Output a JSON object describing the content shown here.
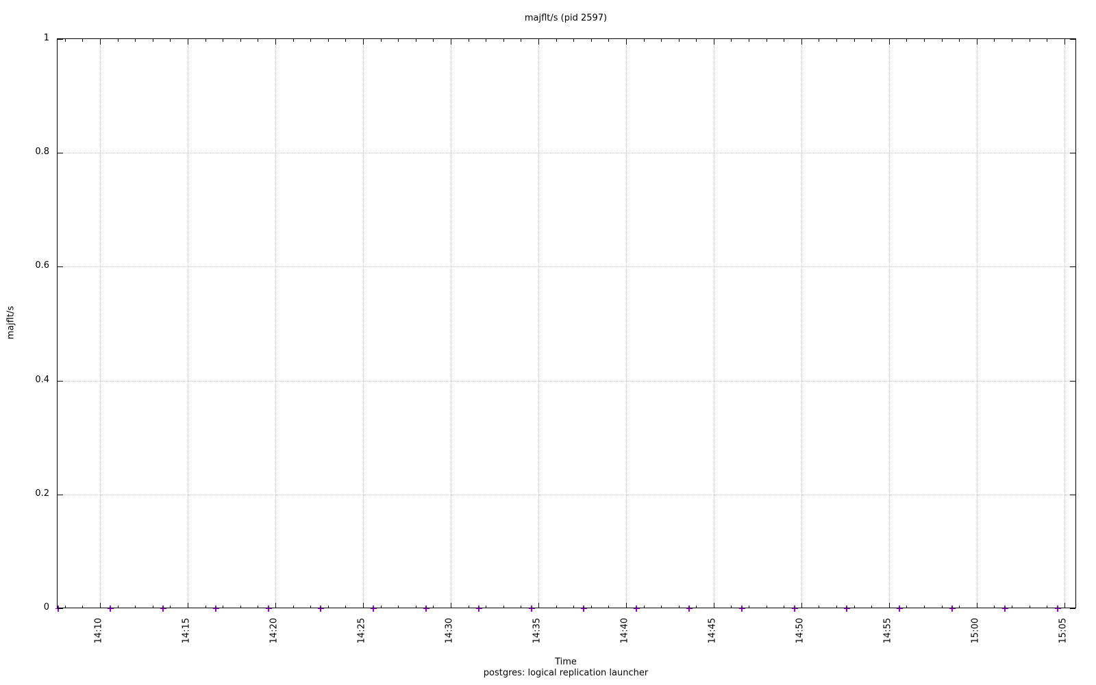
{
  "chart_data": {
    "type": "scatter",
    "title": "majflt/s (pid 2597)",
    "xlabel": "Time",
    "ylabel": "majflt/s",
    "footer": "postgres: logical replication launcher",
    "legend_position": "none",
    "grid": true,
    "x_axis": {
      "kind": "time",
      "range_minutes_after_1400": [
        7.58,
        65.63
      ],
      "major_tick_labels": [
        "14:10",
        "14:15",
        "14:20",
        "14:25",
        "14:30",
        "14:35",
        "14:40",
        "14:45",
        "14:50",
        "14:55",
        "15:00",
        "15:05"
      ],
      "major_tick_minutes_after_1400": [
        10,
        15,
        20,
        25,
        30,
        35,
        40,
        45,
        50,
        55,
        60,
        65
      ],
      "minor_tick_every_minutes": 1
    },
    "y_axis": {
      "range": [
        0,
        1
      ],
      "tick_labels": [
        "0",
        "0.2",
        "0.4",
        "0.6",
        "0.8",
        "1"
      ],
      "tick_values": [
        0,
        0.2,
        0.4,
        0.6,
        0.8,
        1
      ]
    },
    "series": [
      {
        "name": "postgres: logical replication launcher",
        "color": "#9400d3",
        "marker": "plus",
        "sample_interval_minutes": 3,
        "x_minutes_after_1400": [
          7.6,
          10.6,
          13.6,
          16.6,
          19.6,
          22.6,
          25.6,
          28.6,
          31.6,
          34.6,
          37.6,
          40.6,
          43.6,
          46.6,
          49.6,
          52.6,
          55.6,
          58.6,
          61.6,
          64.6
        ],
        "values": [
          0,
          0,
          0,
          0,
          0,
          0,
          0,
          0,
          0,
          0,
          0,
          0,
          0,
          0,
          0,
          0,
          0,
          0,
          0,
          0
        ]
      }
    ]
  },
  "colors": {
    "series": "#9400d3",
    "grid": "#c4c4c4",
    "axis": "#000000",
    "text": "#000000",
    "background": "#ffffff"
  }
}
